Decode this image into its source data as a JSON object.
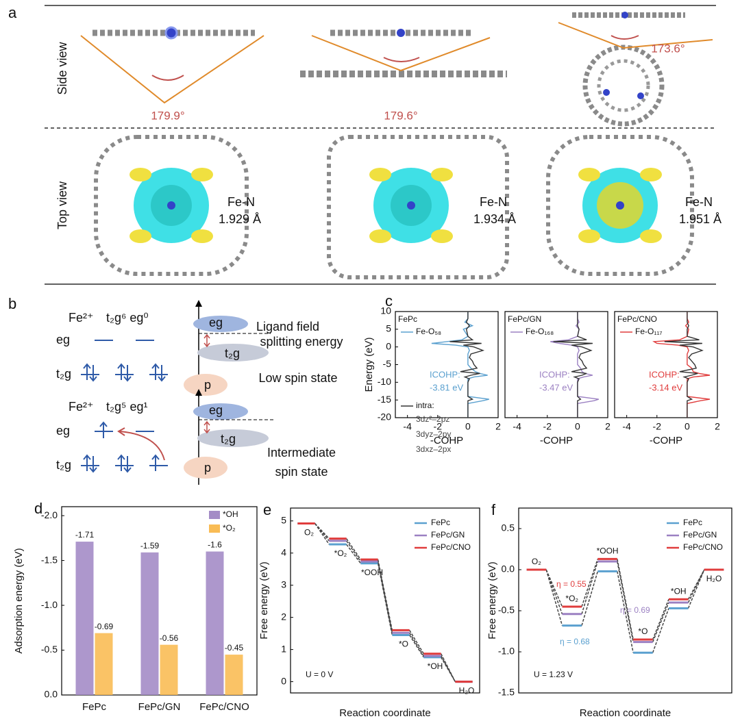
{
  "panel_a": {
    "label": "a",
    "side_view": "Side view",
    "top_view": "Top view",
    "angles": [
      "179.9°",
      "179.6°",
      "173.6°"
    ],
    "bond_label": "Fe-N",
    "bond_lengths": [
      "1.929 Å",
      "1.934 Å",
      "1.951 Å"
    ]
  },
  "panel_b": {
    "label": "b",
    "ion": "Fe²⁺",
    "config_low": "t₂g⁶ eg⁰",
    "config_mid": "t₂g⁵ eg¹",
    "eg": "eg",
    "t2g": "t₂g",
    "p": "p",
    "ligand_field": [
      "Ligand field",
      "splitting energy"
    ],
    "low_spin": "Low spin state",
    "intermediate_spin": [
      "Intermediate",
      "spin state"
    ]
  },
  "chart_data": [
    {
      "type": "line",
      "orientation": "vertical",
      "panel": "c",
      "title": "FePc",
      "ylabel": "Energy (eV)",
      "xlabel": "-COHP",
      "xlim": [
        -4.8,
        2.0
      ],
      "xticks": [
        -4,
        -2,
        0,
        2
      ],
      "ylim": [
        -20,
        10
      ],
      "yticks": [
        10,
        5,
        0,
        -5,
        -10,
        -15,
        -20
      ],
      "energy": [
        10,
        8,
        7,
        6,
        5,
        3,
        2,
        1.5,
        1,
        0.5,
        0,
        -1,
        -2,
        -3,
        -4,
        -5,
        -6,
        -7,
        -7.5,
        -8,
        -8.5,
        -9,
        -10,
        -12,
        -14,
        -14.8,
        -15.2,
        -16,
        -18,
        -20
      ],
      "series": [
        {
          "name": "Fe-O₅₈",
          "color": "#5aa0cf",
          "values": [
            0,
            0,
            -0.2,
            0.3,
            -0.3,
            0,
            -0.4,
            -1.4,
            -2.4,
            -0.8,
            0,
            0.1,
            0,
            0,
            0,
            0,
            0.2,
            0.5,
            0.8,
            1.3,
            0.4,
            0,
            0,
            0,
            0,
            1.4,
            1.0,
            0,
            0,
            0
          ]
        },
        {
          "name": "intra:",
          "color": "#333333",
          "values": [
            0,
            0,
            -0.1,
            0.1,
            -0.1,
            0,
            0.3,
            -1.2,
            0.9,
            -0.3,
            0.4,
            1.0,
            0.2,
            0.1,
            0.3,
            0.4,
            0.6,
            -0.5,
            0.8,
            0.2,
            -0.2,
            0.1,
            0,
            0,
            0,
            0.3,
            0,
            0,
            0,
            0
          ]
        }
      ],
      "icohp": [
        "ICOHP:",
        "-3.81 eV"
      ],
      "intra_labels": [
        "3dz²–2pz",
        "3dyz–2py",
        "3dxz–2px"
      ]
    },
    {
      "type": "line",
      "orientation": "vertical",
      "title": "FePc/GN",
      "xlabel": "-COHP",
      "xlim": [
        -4.8,
        2.0
      ],
      "xticks": [
        -4,
        -2,
        0,
        2
      ],
      "ylim": [
        -20,
        10
      ],
      "energy": [
        10,
        8,
        7,
        6,
        5,
        3,
        2,
        1.5,
        1,
        0.5,
        0,
        -1,
        -2,
        -3,
        -4,
        -5,
        -6,
        -7,
        -7.5,
        -8,
        -8.5,
        -9,
        -10,
        -12,
        -14,
        -14.8,
        -15.2,
        -16,
        -18,
        -20
      ],
      "series": [
        {
          "name": "Fe-O₁₆₈",
          "color": "#9b80c2",
          "values": [
            0,
            0,
            0.1,
            -0.1,
            0.1,
            0,
            -0.6,
            -1.8,
            -1.2,
            -0.4,
            0,
            0.1,
            0,
            0,
            0,
            0,
            0.2,
            0.3,
            0.5,
            1.0,
            0.4,
            0,
            0,
            0,
            0,
            1.4,
            1.1,
            0,
            0,
            0
          ]
        },
        {
          "color": "#333333",
          "values": [
            0,
            0,
            0,
            0,
            0.1,
            0,
            0.6,
            -1.6,
            1.0,
            -0.4,
            0.3,
            0.9,
            0.2,
            0.1,
            0.3,
            0.4,
            0.6,
            -0.4,
            0.6,
            0.3,
            -0.2,
            0.1,
            0,
            0,
            0,
            0.2,
            0,
            0,
            0,
            0
          ]
        }
      ],
      "icohp": [
        "ICOHP:",
        "-3.47 eV"
      ]
    },
    {
      "type": "line",
      "orientation": "vertical",
      "title": "FePc/CNO",
      "xlabel": "-COHP",
      "xlim": [
        -4.8,
        2.0
      ],
      "xticks": [
        -4,
        -2,
        0,
        2
      ],
      "ylim": [
        -20,
        10
      ],
      "energy": [
        10,
        8,
        7,
        6,
        5,
        3,
        2,
        1.5,
        1,
        0.5,
        0,
        -1,
        -2,
        -3,
        -4,
        -5,
        -6,
        -7,
        -7.5,
        -8,
        -8.5,
        -9,
        -10,
        -12,
        -14,
        -14.8,
        -15.2,
        -16,
        -18,
        -20
      ],
      "series": [
        {
          "name": "Fe-O₁₁₇",
          "color": "#e03c3c",
          "values": [
            0,
            0,
            0.1,
            -0.1,
            0.1,
            0,
            -0.5,
            -2.2,
            -2.0,
            -0.6,
            0,
            0.1,
            0,
            0,
            0,
            0,
            0.3,
            0.4,
            0.8,
            1.5,
            0.4,
            0,
            0,
            0,
            0,
            1.5,
            0.9,
            0,
            0,
            0
          ]
        },
        {
          "color": "#333333",
          "values": [
            0,
            0,
            0,
            0.1,
            0,
            0,
            0.8,
            -1.5,
            1.0,
            -0.5,
            0.4,
            1.0,
            0.3,
            0.1,
            0.3,
            0.5,
            0.6,
            -0.5,
            0.7,
            0.3,
            -0.2,
            0.1,
            0,
            0,
            0,
            0.3,
            0,
            0,
            0,
            0
          ]
        }
      ],
      "icohp": [
        "ICOHP:",
        "-3.14 eV"
      ]
    },
    {
      "type": "bar",
      "panel": "d",
      "ylabel": "Adsorption energy (eV)",
      "categories": [
        "FePc",
        "FePc/GN",
        "FePc/CNO"
      ],
      "series": [
        {
          "name": "*OH",
          "color": "#a48cc6",
          "values": [
            -1.71,
            -1.59,
            -1.6
          ]
        },
        {
          "name": "*O₂",
          "color": "#f9bc55",
          "values": [
            -0.69,
            -0.56,
            -0.45
          ]
        }
      ],
      "ylim": [
        0,
        -2.1
      ],
      "yticks": [
        {
          "value": 0,
          "label": "0.0"
        },
        -0.5,
        {
          "value": -1,
          "label": "-1.0"
        },
        -1.5,
        {
          "value": -2,
          "label": "-2.0"
        }
      ]
    },
    {
      "type": "step",
      "panel": "e",
      "ylabel": "Free energy (eV)",
      "xlabel": "Reaction coordinate",
      "categories": [
        "O₂",
        "*O₂",
        "*OOH",
        "*O",
        "*OH",
        "H₂O"
      ],
      "series": [
        {
          "name": "FePc",
          "color": "#5aa0cf",
          "values": [
            4.92,
            4.27,
            3.68,
            1.45,
            0.76,
            0
          ]
        },
        {
          "name": "FePc/GN",
          "color": "#9b80c2",
          "values": [
            4.92,
            4.38,
            3.74,
            1.52,
            0.8,
            0
          ]
        },
        {
          "name": "FePc/CNO",
          "color": "#e03c3c",
          "values": [
            4.92,
            4.45,
            3.8,
            1.6,
            0.87,
            0
          ]
        }
      ],
      "ylim": [
        -0.35,
        5.4
      ],
      "yticks": [
        0,
        1,
        2,
        3,
        4,
        5
      ],
      "annotation": "U = 0 V"
    },
    {
      "type": "step",
      "panel": "f",
      "ylabel": "Free energy (eV)",
      "xlabel": "Reaction coordinate",
      "categories": [
        "O₂",
        "*O₂",
        "*OOH",
        "*O",
        "*OH",
        "H₂O"
      ],
      "series": [
        {
          "name": "FePc",
          "color": "#5aa0cf",
          "values": [
            0,
            -0.68,
            -0.02,
            -1.01,
            -0.47,
            0
          ]
        },
        {
          "name": "FePc/GN",
          "color": "#9b80c2",
          "values": [
            0,
            -0.54,
            0.1,
            -0.88,
            -0.4,
            0
          ]
        },
        {
          "name": "FePc/CNO",
          "color": "#e03c3c",
          "values": [
            0,
            -0.45,
            0.13,
            -0.85,
            -0.36,
            0
          ]
        }
      ],
      "ylim": [
        -1.5,
        0.75
      ],
      "yticks": [
        0.5,
        {
          "value": 0,
          "label": "0.0"
        },
        -0.5,
        {
          "value": -1,
          "label": "-1.0"
        },
        -1.5
      ],
      "annotation": "U = 1.23 V",
      "overpotentials": [
        {
          "text": "η = 0.55",
          "color": "#e03c3c"
        },
        {
          "text": "η = 0.69",
          "color": "#9b80c2"
        },
        {
          "text": "η = 0.68",
          "color": "#5aa0cf"
        }
      ]
    }
  ]
}
